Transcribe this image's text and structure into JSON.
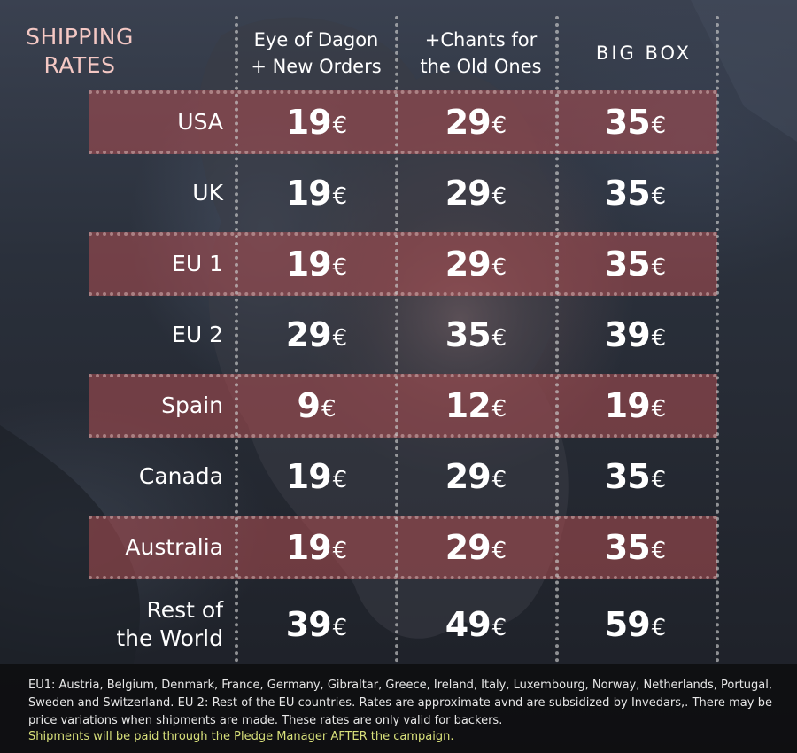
{
  "title": "SHIPPING\nRATES",
  "columns": [
    {
      "label": "Eye of Dagon\n+ New Orders"
    },
    {
      "label": "+Chants for\nthe Old Ones"
    },
    {
      "label": "BIG BOX"
    }
  ],
  "currency": "€",
  "rows": [
    {
      "country": "USA",
      "prices": [
        "19",
        "29",
        "35"
      ],
      "highlighted": true
    },
    {
      "country": "UK",
      "prices": [
        "19",
        "29",
        "35"
      ],
      "highlighted": false
    },
    {
      "country": "EU 1",
      "prices": [
        "19",
        "29",
        "35"
      ],
      "highlighted": true
    },
    {
      "country": "EU 2",
      "prices": [
        "29",
        "35",
        "39"
      ],
      "highlighted": false
    },
    {
      "country": "Spain",
      "prices": [
        "9",
        "12",
        "19"
      ],
      "highlighted": true
    },
    {
      "country": "Canada",
      "prices": [
        "19",
        "29",
        "35"
      ],
      "highlighted": false
    },
    {
      "country": "Australia",
      "prices": [
        "19",
        "29",
        "35"
      ],
      "highlighted": true
    },
    {
      "country": "Rest of\nthe World",
      "prices": [
        "39",
        "49",
        "59"
      ],
      "highlighted": false
    }
  ],
  "footnote": "EU1: Austria, Belgium, Denmark, France, Germany, Gibraltar, Greece, Ireland, Italy, Luxembourg, Norway, Netherlands, Portugal, Sweden and Switzerland. EU 2: Rest of the EU countries. Rates are approximate avnd are subsidized by Invedars,. There may be price variations when shipments are made. These rates are only valid for backers.",
  "highlight_note": "Shipments will be paid through the Pledge Manager AFTER the campaign.",
  "colors": {
    "title": "#f4c8c4",
    "band": "#af4e52",
    "note_highlight": "#d8e07a"
  }
}
